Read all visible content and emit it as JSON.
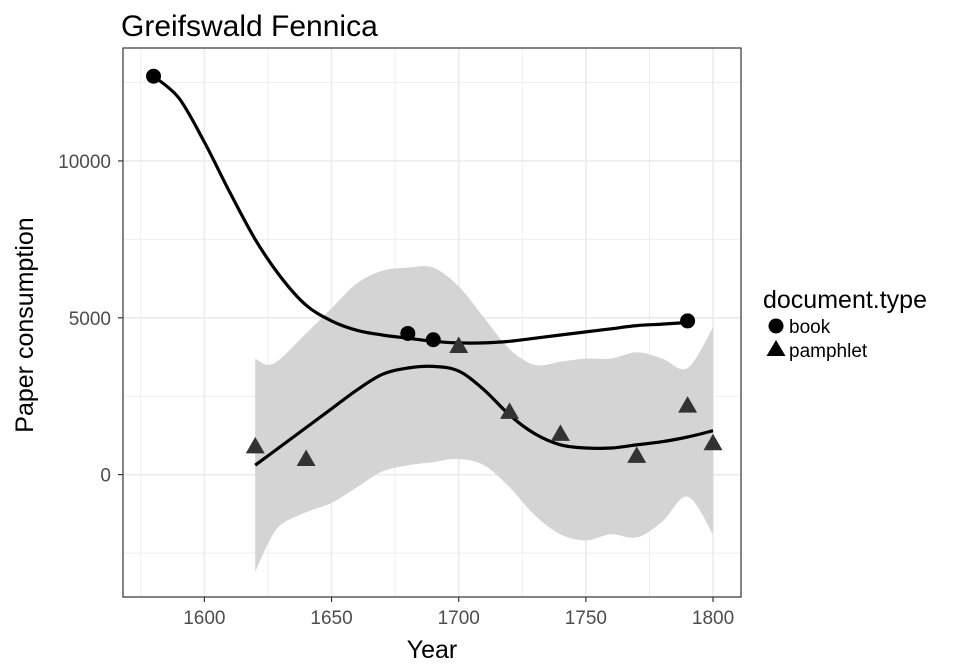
{
  "chart_data": {
    "type": "scatter",
    "title": "Greifswald Fennica",
    "xlabel": "Year",
    "ylabel": "Paper consumption",
    "xlim": [
      1568,
      1811
    ],
    "ylim": [
      -3900,
      13600
    ],
    "x_ticks": [
      1600,
      1650,
      1700,
      1750,
      1800
    ],
    "x_tick_labels": [
      "1600",
      "1650",
      "1700",
      "1750",
      "1800"
    ],
    "y_ticks": [
      0,
      5000,
      10000
    ],
    "y_tick_labels": [
      "0",
      "5000",
      "10000"
    ],
    "grid": true,
    "legend": {
      "title": "document.type",
      "position": "right",
      "entries": [
        {
          "label": "book",
          "shape": "circle"
        },
        {
          "label": "pamphlet",
          "shape": "triangle"
        }
      ]
    },
    "series": [
      {
        "name": "book",
        "shape": "circle",
        "points": [
          {
            "x": 1580,
            "y": 12700
          },
          {
            "x": 1680,
            "y": 4500
          },
          {
            "x": 1690,
            "y": 4300
          },
          {
            "x": 1790,
            "y": 4900
          }
        ],
        "smooth": [
          {
            "x": 1580,
            "y": 12700
          },
          {
            "x": 1590,
            "y": 12000
          },
          {
            "x": 1600,
            "y": 10600
          },
          {
            "x": 1610,
            "y": 9000
          },
          {
            "x": 1620,
            "y": 7500
          },
          {
            "x": 1630,
            "y": 6300
          },
          {
            "x": 1640,
            "y": 5400
          },
          {
            "x": 1650,
            "y": 4900
          },
          {
            "x": 1660,
            "y": 4600
          },
          {
            "x": 1670,
            "y": 4450
          },
          {
            "x": 1680,
            "y": 4350
          },
          {
            "x": 1690,
            "y": 4250
          },
          {
            "x": 1700,
            "y": 4200
          },
          {
            "x": 1710,
            "y": 4200
          },
          {
            "x": 1720,
            "y": 4250
          },
          {
            "x": 1730,
            "y": 4350
          },
          {
            "x": 1740,
            "y": 4450
          },
          {
            "x": 1750,
            "y": 4550
          },
          {
            "x": 1760,
            "y": 4650
          },
          {
            "x": 1770,
            "y": 4750
          },
          {
            "x": 1780,
            "y": 4800
          },
          {
            "x": 1790,
            "y": 4850
          }
        ]
      },
      {
        "name": "pamphlet",
        "shape": "triangle",
        "points": [
          {
            "x": 1620,
            "y": 900
          },
          {
            "x": 1640,
            "y": 500
          },
          {
            "x": 1700,
            "y": 4100
          },
          {
            "x": 1720,
            "y": 2000
          },
          {
            "x": 1740,
            "y": 1300
          },
          {
            "x": 1770,
            "y": 600
          },
          {
            "x": 1790,
            "y": 2200
          },
          {
            "x": 1800,
            "y": 1000
          }
        ],
        "smooth": [
          {
            "x": 1620,
            "y": 300
          },
          {
            "x": 1630,
            "y": 900
          },
          {
            "x": 1640,
            "y": 1500
          },
          {
            "x": 1650,
            "y": 2100
          },
          {
            "x": 1660,
            "y": 2700
          },
          {
            "x": 1670,
            "y": 3200
          },
          {
            "x": 1680,
            "y": 3400
          },
          {
            "x": 1690,
            "y": 3450
          },
          {
            "x": 1700,
            "y": 3300
          },
          {
            "x": 1710,
            "y": 2700
          },
          {
            "x": 1720,
            "y": 1900
          },
          {
            "x": 1730,
            "y": 1300
          },
          {
            "x": 1740,
            "y": 950
          },
          {
            "x": 1750,
            "y": 850
          },
          {
            "x": 1760,
            "y": 850
          },
          {
            "x": 1770,
            "y": 950
          },
          {
            "x": 1780,
            "y": 1050
          },
          {
            "x": 1790,
            "y": 1200
          },
          {
            "x": 1800,
            "y": 1400
          }
        ],
        "band": [
          {
            "x": 1620,
            "upper": 3700,
            "lower": -3100
          },
          {
            "x": 1625,
            "upper": 3500,
            "lower": -2200
          },
          {
            "x": 1630,
            "upper": 3700,
            "lower": -1600
          },
          {
            "x": 1640,
            "upper": 4500,
            "lower": -1200
          },
          {
            "x": 1650,
            "upper": 5300,
            "lower": -900
          },
          {
            "x": 1660,
            "upper": 6100,
            "lower": -400
          },
          {
            "x": 1670,
            "upper": 6500,
            "lower": 100
          },
          {
            "x": 1680,
            "upper": 6600,
            "lower": 300
          },
          {
            "x": 1690,
            "upper": 6600,
            "lower": 400
          },
          {
            "x": 1700,
            "upper": 6000,
            "lower": 500
          },
          {
            "x": 1710,
            "upper": 5000,
            "lower": 300
          },
          {
            "x": 1720,
            "upper": 4000,
            "lower": -400
          },
          {
            "x": 1730,
            "upper": 3500,
            "lower": -1300
          },
          {
            "x": 1740,
            "upper": 3600,
            "lower": -1900
          },
          {
            "x": 1750,
            "upper": 3700,
            "lower": -2100
          },
          {
            "x": 1760,
            "upper": 3700,
            "lower": -1900
          },
          {
            "x": 1770,
            "upper": 3900,
            "lower": -2000
          },
          {
            "x": 1780,
            "upper": 3700,
            "lower": -1500
          },
          {
            "x": 1790,
            "upper": 3400,
            "lower": -700
          },
          {
            "x": 1800,
            "upper": 4700,
            "lower": -1900
          }
        ]
      }
    ],
    "colors": {
      "book_points": "#000000",
      "pamphlet_points": "#333333",
      "smooth_line": "#000000",
      "band_fill": "#d4d4d4",
      "grid": "#ebebeb",
      "panel_border": "#333333"
    }
  }
}
